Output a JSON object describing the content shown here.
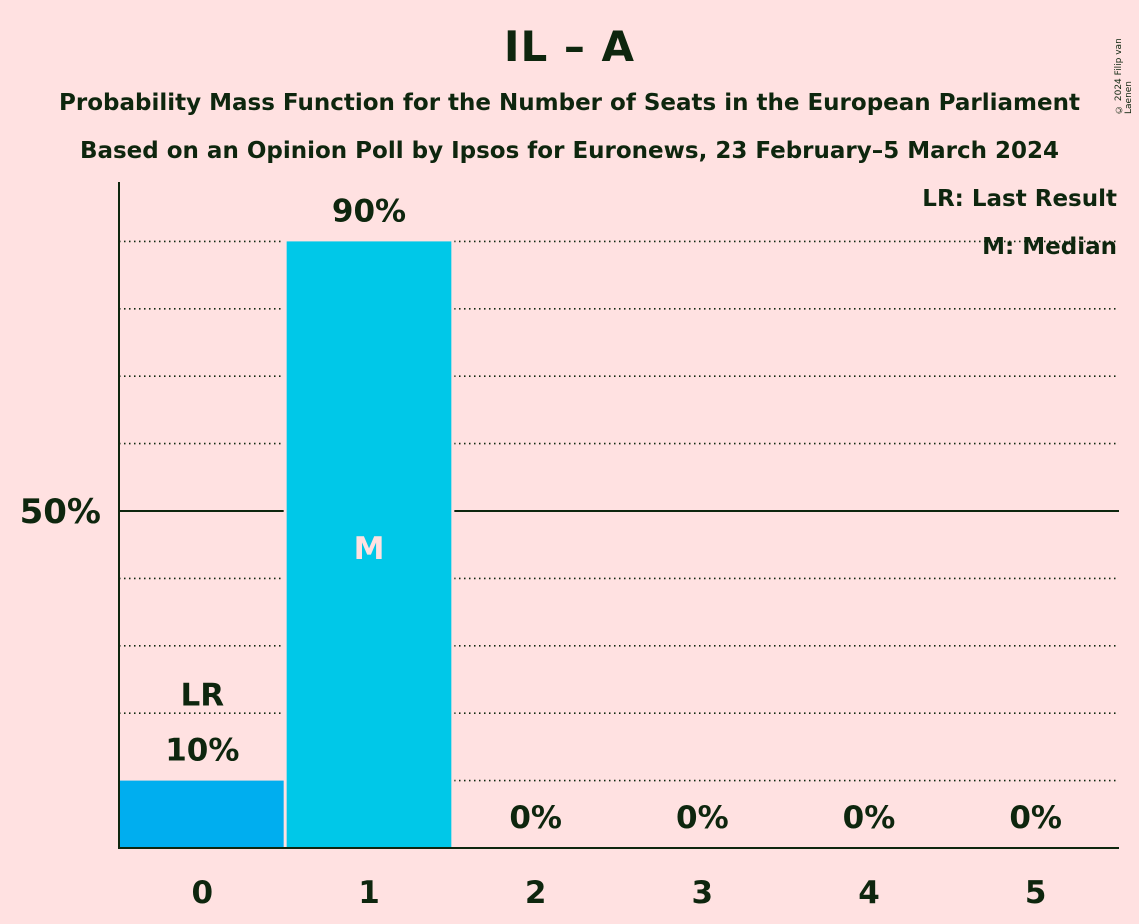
{
  "title": "IL – A",
  "subtitle_1": "Probability Mass Function for the Number of Seats in the European Parliament",
  "subtitle_2": "Based on an Opinion Poll by Ipsos for Euronews, 23 February–5 March 2024",
  "copyright": "© 2024 Filip van Laenen",
  "legend": {
    "last_result": "LR: Last Result",
    "median": "M: Median"
  },
  "colors": {
    "background": "#ffe1e1",
    "text": "#0e260e",
    "bar_last_result": "#00aeef",
    "bar_default": "#00c8e8",
    "median_label": "#ffe1e1"
  },
  "chart_data": {
    "type": "bar",
    "categories": [
      "0",
      "1",
      "2",
      "3",
      "4",
      "5"
    ],
    "values": [
      10,
      90,
      0,
      0,
      0,
      0
    ],
    "value_labels": [
      "10%",
      "90%",
      "0%",
      "0%",
      "0%",
      "0%"
    ],
    "ylim": [
      0,
      100
    ],
    "y_tick_label": "50%",
    "y_tick_value": 50,
    "gridlines": [
      10,
      20,
      30,
      40,
      60,
      70,
      80,
      90
    ],
    "last_result_index": 0,
    "last_result_label": "LR",
    "median_index": 1,
    "median_label": "M",
    "xlabel": "",
    "ylabel": ""
  }
}
